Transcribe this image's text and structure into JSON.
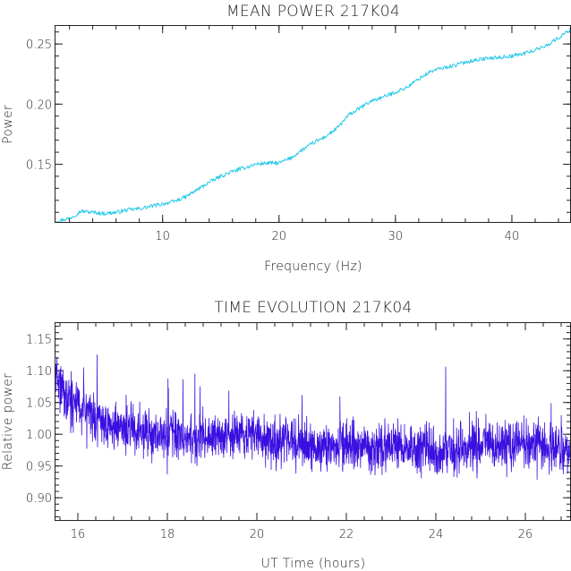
{
  "chart_data": [
    {
      "type": "line",
      "title": "MEAN POWER 217K04",
      "xlabel": "Frequency (Hz)",
      "ylabel": "Power",
      "xlim": [
        0.8,
        45
      ],
      "ylim": [
        0.102,
        0.265
      ],
      "xticks": [
        10,
        20,
        30,
        40
      ],
      "yticks": [
        0.15,
        0.2,
        0.25
      ],
      "ytick_labels": [
        "0.15",
        "0.20",
        "0.25"
      ],
      "grid": false,
      "color": "#22c8e8",
      "series": [
        {
          "x": [
            1,
            2,
            3,
            4,
            5,
            6,
            7,
            8,
            9,
            10,
            11,
            12,
            13,
            14,
            15,
            16,
            17,
            18,
            19,
            20,
            21,
            22,
            23,
            24,
            25,
            26,
            27,
            28,
            29,
            30,
            31,
            32,
            33,
            34,
            35,
            36,
            37,
            38,
            39,
            40,
            41,
            42,
            43,
            44,
            45
          ],
          "values": [
            0.103,
            0.105,
            0.111,
            0.11,
            0.109,
            0.11,
            0.112,
            0.113,
            0.115,
            0.117,
            0.119,
            0.123,
            0.129,
            0.135,
            0.14,
            0.144,
            0.147,
            0.15,
            0.151,
            0.151,
            0.155,
            0.162,
            0.168,
            0.173,
            0.18,
            0.191,
            0.197,
            0.203,
            0.206,
            0.21,
            0.214,
            0.221,
            0.227,
            0.23,
            0.232,
            0.235,
            0.237,
            0.238,
            0.239,
            0.24,
            0.242,
            0.245,
            0.249,
            0.255,
            0.262
          ]
        }
      ]
    },
    {
      "type": "line",
      "title": "TIME EVOLUTION 217K04",
      "xlabel": "UT Time (hours)",
      "ylabel": "Relative power",
      "xlim": [
        15.5,
        27.0
      ],
      "ylim": [
        0.865,
        1.175
      ],
      "xticks": [
        16,
        18,
        20,
        22,
        24,
        26
      ],
      "yticks": [
        0.9,
        0.95,
        1.0,
        1.05,
        1.1,
        1.15
      ],
      "ytick_labels": [
        "0.90",
        "0.95",
        "1.00",
        "1.05",
        "1.10",
        "1.15"
      ],
      "grid": false,
      "color": "#3a10e0",
      "noise_amplitude": 0.032,
      "series": [
        {
          "x": [
            15.5,
            15.75,
            16.0,
            16.25,
            16.5,
            16.75,
            17.0,
            17.25,
            17.5,
            17.75,
            18.0,
            18.5,
            19.0,
            19.5,
            20.0,
            20.5,
            21.0,
            21.5,
            22.0,
            22.5,
            23.0,
            23.5,
            24.0,
            24.5,
            25.0,
            25.5,
            26.0,
            26.5,
            27.0
          ],
          "values": [
            1.09,
            1.06,
            1.045,
            1.03,
            1.02,
            1.015,
            1.012,
            1.008,
            1.005,
            1.003,
            1.0,
            0.998,
            0.995,
            0.997,
            1.0,
            0.99,
            0.985,
            0.983,
            0.98,
            0.978,
            0.982,
            0.978,
            0.975,
            0.978,
            0.985,
            0.982,
            0.99,
            0.98,
            0.975
          ]
        }
      ]
    }
  ]
}
